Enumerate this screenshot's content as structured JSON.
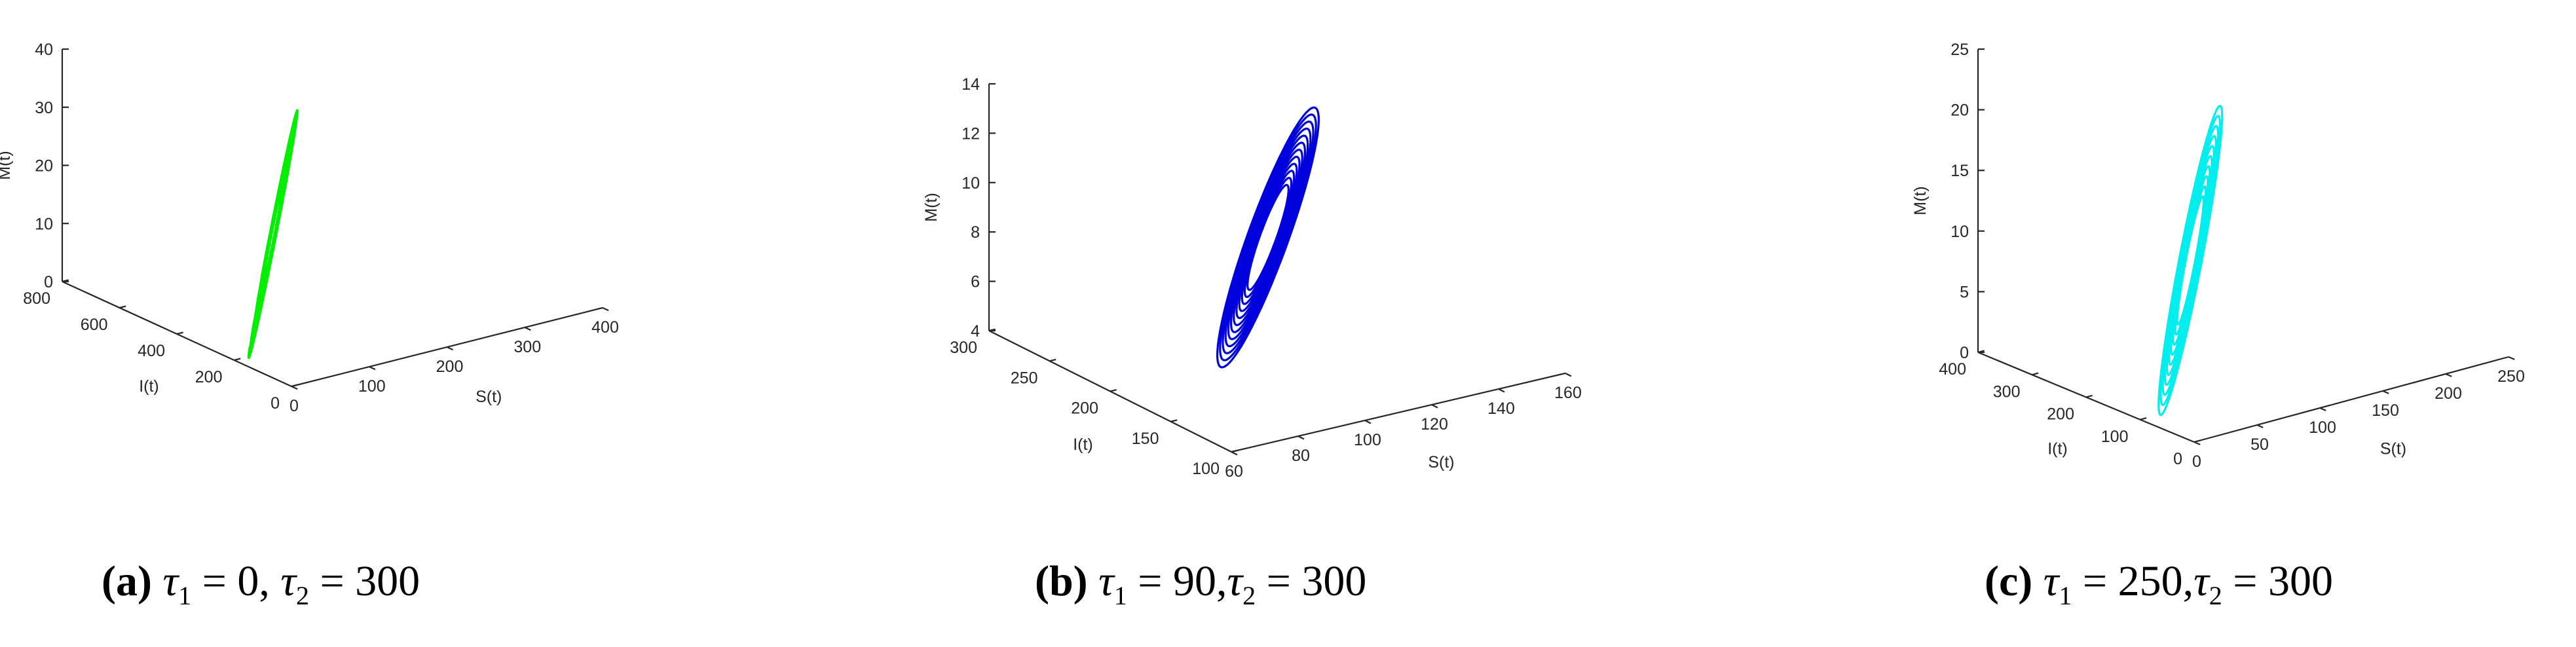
{
  "chart_data": [
    {
      "type": "line3d",
      "panel_letter": "a",
      "caption": {
        "letter": "(a)",
        "tau1_symbol": "τ",
        "tau1_sub": "1",
        "tau1_value": " = 0, ",
        "tau2_symbol": "τ",
        "tau2_sub": "2",
        "tau2_value": " = 300"
      },
      "color": "#00ee00",
      "xlabel": "S(t)",
      "ylabel": "I(t)",
      "zlabel": "M(t)",
      "xlim": [
        0,
        400
      ],
      "ylim": [
        0,
        800
      ],
      "zlim": [
        0,
        40
      ],
      "xticks": [
        "0",
        "100",
        "200",
        "300",
        "400"
      ],
      "yticks": [
        "0",
        "200",
        "400",
        "600",
        "800"
      ],
      "zticks": [
        "0",
        "10",
        "20",
        "30",
        "40"
      ],
      "trajectory": {
        "center_S": 50,
        "center_I": 200,
        "center_M": 15,
        "min_S": 0,
        "max_S": 150,
        "min_M": 0,
        "max_M": 40,
        "loops": 10
      }
    },
    {
      "type": "line3d",
      "panel_letter": "b",
      "caption": {
        "letter": "(b)",
        "tau1_symbol": "τ",
        "tau1_sub": "1",
        "tau1_value": " = 90,",
        "tau2_symbol": "τ",
        "tau2_sub": "2",
        "tau2_value": " = 300"
      },
      "color": "#0000dd",
      "xlabel": "S(t)",
      "ylabel": "I(t)",
      "zlabel": "M(t)",
      "xlim": [
        60,
        160
      ],
      "ylim": [
        100,
        300
      ],
      "zlim": [
        4,
        14
      ],
      "xticks": [
        "60",
        "80",
        "100",
        "120",
        "140",
        "160"
      ],
      "yticks": [
        "100",
        "150",
        "200",
        "250",
        "300"
      ],
      "zticks": [
        "4",
        "6",
        "8",
        "10",
        "12",
        "14"
      ],
      "trajectory": {
        "center_S": 100,
        "center_I": 180,
        "center_M": 9.5,
        "min_S": 70,
        "max_S": 130,
        "min_M": 4.7,
        "max_M": 14.2,
        "loops": 12
      }
    },
    {
      "type": "line3d",
      "panel_letter": "c",
      "caption": {
        "letter": "(c)",
        "tau1_symbol": "τ",
        "tau1_sub": "1",
        "tau1_value": " = 250,",
        "tau2_symbol": "τ",
        "tau2_sub": "2",
        "tau2_value": " = 300"
      },
      "color": "#00eeee",
      "xlabel": "S(t)",
      "ylabel": "I(t)",
      "zlabel": "M(t)",
      "xlim": [
        0,
        250
      ],
      "ylim": [
        0,
        400
      ],
      "zlim": [
        0,
        25
      ],
      "xticks": [
        "0",
        "50",
        "100",
        "150",
        "200",
        "250"
      ],
      "yticks": [
        "0",
        "100",
        "200",
        "300",
        "400"
      ],
      "zticks": [
        "0",
        "5",
        "10",
        "15",
        "20",
        "25"
      ],
      "trajectory": {
        "center_S": 40,
        "center_I": 100,
        "center_M": 10,
        "min_S": 0,
        "max_S": 110,
        "min_M": 0,
        "max_M": 24,
        "loops": 10
      }
    }
  ]
}
